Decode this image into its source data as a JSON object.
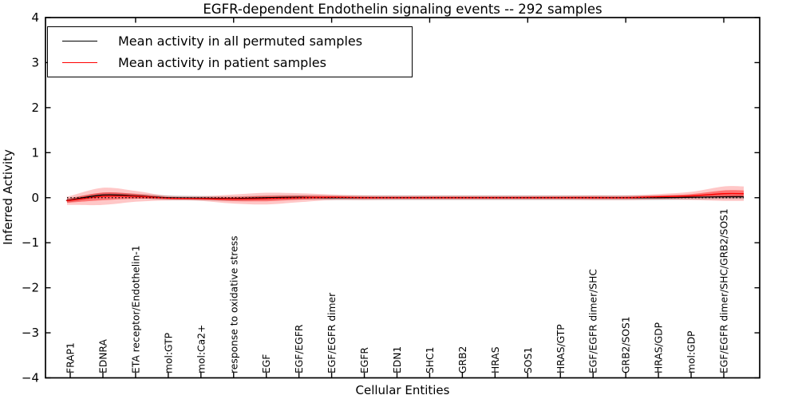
{
  "figure": {
    "background": "#ffffff"
  },
  "legend": {
    "items": [
      {
        "label": "Mean activity in all permuted samples",
        "color": "#000000"
      },
      {
        "label": "Mean activity in patient samples",
        "color": "#ff0000"
      }
    ]
  },
  "chart_data": {
    "type": "line",
    "title": "EGFR-dependent Endothelin signaling events -- 292 samples",
    "xlabel": "Cellular Entities",
    "ylabel": "Inferred Activity",
    "ylim": [
      -4,
      4
    ],
    "grid": false,
    "legend_position": "upper left",
    "yticks": [
      {
        "v": 4,
        "label": "4"
      },
      {
        "v": 3,
        "label": "3"
      },
      {
        "v": 2,
        "label": "2"
      },
      {
        "v": 1,
        "label": "1"
      },
      {
        "v": 0,
        "label": "0"
      },
      {
        "v": -1,
        "label": "−1"
      },
      {
        "v": -2,
        "label": "−2"
      },
      {
        "v": -3,
        "label": "−3"
      },
      {
        "v": -4,
        "label": "−4"
      }
    ],
    "categories": [
      "FRAP1",
      "EDNRA",
      "ETA receptor/Endothelin-1",
      "mol:GTP",
      "mol:Ca2+",
      "response to oxidative stress",
      "EGF",
      "EGF/EGFR",
      "EGF/EGFR dimer",
      "EGFR",
      "EDN1",
      "SHC1",
      "GRB2",
      "HRAS",
      "SOS1",
      "HRAS/GTP",
      "EGF/EGFR dimer/SHC",
      "GRB2/SOS1",
      "HRAS/GDP",
      "mol:GDP",
      "EGF/EGFR dimer/SHC/GRB2/SOS1"
    ],
    "series": [
      {
        "name": "Mean activity in all permuted samples",
        "color": "#000000",
        "values": [
          -0.05,
          0.06,
          0.04,
          0.0,
          -0.01,
          -0.02,
          0.0,
          0.01,
          0.0,
          0.0,
          0.0,
          0.0,
          0.0,
          0.0,
          0.0,
          0.0,
          0.0,
          0.0,
          0.0,
          0.01,
          0.02
        ]
      },
      {
        "name": "Mean activity in patient samples",
        "color": "#ff0000",
        "values": [
          -0.06,
          0.03,
          0.03,
          -0.01,
          -0.02,
          -0.03,
          -0.02,
          0.0,
          0.01,
          0.0,
          0.0,
          0.0,
          0.0,
          0.0,
          0.0,
          0.0,
          0.0,
          0.0,
          0.02,
          0.04,
          0.09
        ]
      }
    ],
    "bands": [
      {
        "name": "permuted-spread",
        "color": "#646464",
        "alpha": 0.3,
        "center_series": 0,
        "half_widths": [
          0.05,
          0.05,
          0.05,
          0.05,
          0.05,
          0.05,
          0.05,
          0.05,
          0.05,
          0.05,
          0.05,
          0.05,
          0.05,
          0.05,
          0.05,
          0.05,
          0.05,
          0.05,
          0.05,
          0.05,
          0.05
        ]
      },
      {
        "name": "patient-spread-outer",
        "color": "#ff0000",
        "alpha": 0.22,
        "center_series": 1,
        "half_widths": [
          0.1,
          0.19,
          0.12,
          0.05,
          0.05,
          0.1,
          0.13,
          0.1,
          0.06,
          0.05,
          0.045,
          0.045,
          0.045,
          0.045,
          0.045,
          0.045,
          0.05,
          0.05,
          0.06,
          0.09,
          0.16
        ]
      },
      {
        "name": "patient-spread-inner",
        "color": "#ff0000",
        "alpha": 0.42,
        "center_series": 1,
        "half_widths": [
          0.045,
          0.085,
          0.054,
          0.022,
          0.022,
          0.045,
          0.058,
          0.045,
          0.027,
          0.022,
          0.02,
          0.02,
          0.02,
          0.02,
          0.02,
          0.02,
          0.022,
          0.022,
          0.027,
          0.04,
          0.072
        ]
      }
    ],
    "zero_line": {
      "y": 0,
      "style": "dotted",
      "color": "#000000"
    }
  }
}
